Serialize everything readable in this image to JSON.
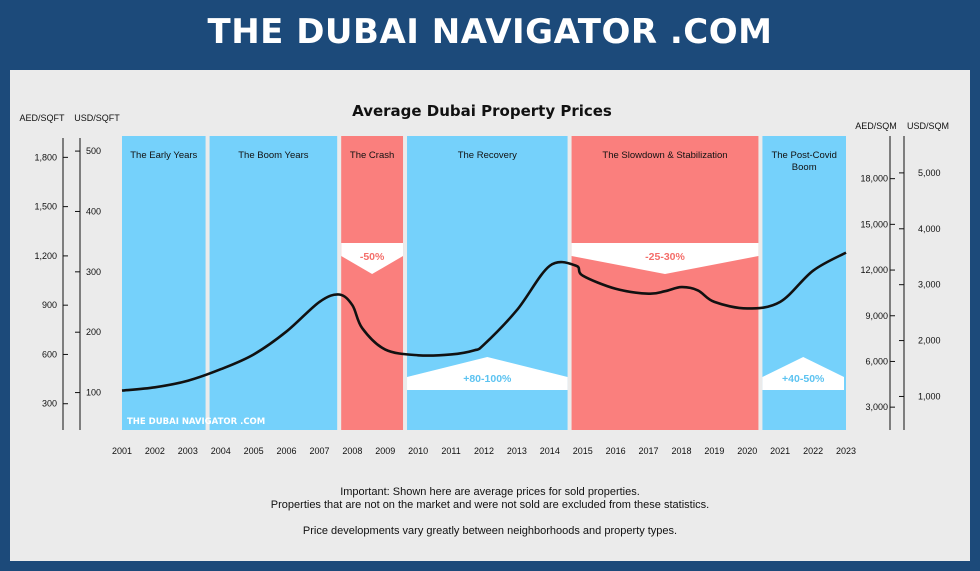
{
  "header": {
    "title": "THE DUBAI NAVIGATOR .COM"
  },
  "colors": {
    "header_bg": "#1c4a7a",
    "blue": "#75d1fb",
    "red": "#fa7f7d",
    "line": "#111111",
    "red_text": "#f46e6a",
    "blue_text": "#5cc3f1"
  },
  "chart_data": {
    "type": "line",
    "title": "Average Dubai Property Prices",
    "x": [
      2001,
      2002,
      2003,
      2004,
      2005,
      2006,
      2007,
      2007.6,
      2008,
      2008.3,
      2009,
      2010,
      2011,
      2011.7,
      2012,
      2013,
      2014,
      2014.8,
      2015,
      2016,
      2017,
      2017.5,
      2018,
      2018.5,
      2019,
      2020,
      2021,
      2022,
      2023
    ],
    "values_aed_sqft": [
      380,
      400,
      440,
      510,
      600,
      740,
      920,
      965,
      900,
      760,
      630,
      595,
      600,
      625,
      660,
      870,
      1140,
      1140,
      1080,
      1000,
      970,
      985,
      1010,
      990,
      920,
      880,
      920,
      1110,
      1220
    ],
    "xlabel": "",
    "x_tick_labels": [
      "2001",
      "2002",
      "2003",
      "2004",
      "2005",
      "2006",
      "2007",
      "2008",
      "2009",
      "2010",
      "2011",
      "2012",
      "2013",
      "2014",
      "2015",
      "2016",
      "2017",
      "2018",
      "2019",
      "2020",
      "2021",
      "2022",
      "2023"
    ],
    "left_axes": {
      "aed_sqft": {
        "label": "AED/SQFT",
        "ylim": [
          140,
          1930
        ],
        "ticks": [
          "300",
          "600",
          "900",
          "1,200",
          "1,500",
          "1,800"
        ]
      },
      "usd_sqft": {
        "label": "USD/SQFT",
        "ylim": [
          38,
          525
        ],
        "ticks": [
          "100",
          "200",
          "300",
          "400",
          "500"
        ]
      }
    },
    "right_axes": {
      "aed_sqm": {
        "label": "AED/SQM",
        "ylim": [
          1500,
          20800
        ],
        "ticks": [
          "3,000",
          "6,000",
          "9,000",
          "12,000",
          "15,000",
          "18,000"
        ]
      },
      "usd_sqm": {
        "label": "USD/SQM",
        "ylim": [
          400,
          5660
        ],
        "ticks": [
          "1,000",
          "2,000",
          "3,000",
          "4,000",
          "5,000"
        ]
      }
    },
    "periods": [
      {
        "label": "The Early Years",
        "start": 2001,
        "end": 2003.6,
        "color": "blue"
      },
      {
        "label": "The Boom Years",
        "start": 2003.6,
        "end": 2007.6,
        "color": "blue"
      },
      {
        "label": "The Crash",
        "start": 2007.6,
        "end": 2009.6,
        "color": "red"
      },
      {
        "label": "The Recovery",
        "start": 2009.6,
        "end": 2014.6,
        "color": "blue"
      },
      {
        "label": "The Slowdown & Stabilization",
        "start": 2014.6,
        "end": 2020.4,
        "color": "red"
      },
      {
        "label": "The Post-Covid Boom",
        "start": 2020.4,
        "end": 2023,
        "color": "blue"
      }
    ],
    "annotations": [
      {
        "text": "-50%",
        "kind": "down",
        "start": 2007.6,
        "end": 2009.6
      },
      {
        "text": "-25-30%",
        "kind": "down",
        "start": 2014.6,
        "end": 2020.4
      },
      {
        "text": "+80-100%",
        "kind": "up",
        "start": 2009.6,
        "end": 2014.6
      },
      {
        "text": "+40-50%",
        "kind": "up",
        "start": 2020.4,
        "end": 2023
      }
    ],
    "watermark": "THE DUBAI NAVIGATOR .COM"
  },
  "notes": {
    "line1": "Important: Shown here are average prices for sold properties.",
    "line2": "Properties that are not on the market and were not sold are excluded from these statistics.",
    "line3": "Price developments vary greatly between neighborhoods and property types."
  }
}
